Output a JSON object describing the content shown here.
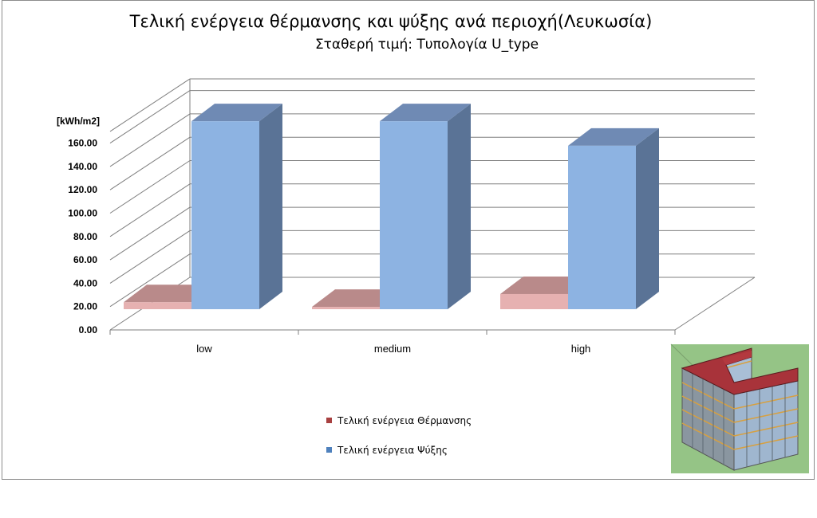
{
  "chart_data": {
    "type": "bar",
    "title": "Τελική ενέργεια θέρμανσης και ψύξης ανά περιοχή(Λευκωσία)",
    "subtitle": "Σταθερή τιμή: Τυπολογία U_type",
    "ylabel": "[kWh/m2]",
    "categories": [
      "low",
      "medium",
      "high"
    ],
    "ylim": [
      0,
      160
    ],
    "yticks": [
      "0.00",
      "20.00",
      "40.00",
      "60.00",
      "80.00",
      "100.00",
      "120.00",
      "140.00",
      "160.00"
    ],
    "series": [
      {
        "name": "Τελική ενέργεια Θέρμανσης",
        "values": [
          6,
          2,
          13
        ],
        "color": "#e6b1b1",
        "side_color": "#b97b7b",
        "top_color": "#b98a8a",
        "legend_color": "#a84040"
      },
      {
        "name": "Τελική ενέργεια Ψύξης",
        "values": [
          161,
          161,
          140
        ],
        "color": "#8db3e2",
        "side_color": "#5a7396",
        "top_color": "#6f8ab4",
        "legend_color": "#4f81bd"
      }
    ],
    "grid": true,
    "legend_position": "bottom"
  },
  "inset_image": {
    "icon": "building-3d-model-icon",
    "background": "#95c486"
  }
}
